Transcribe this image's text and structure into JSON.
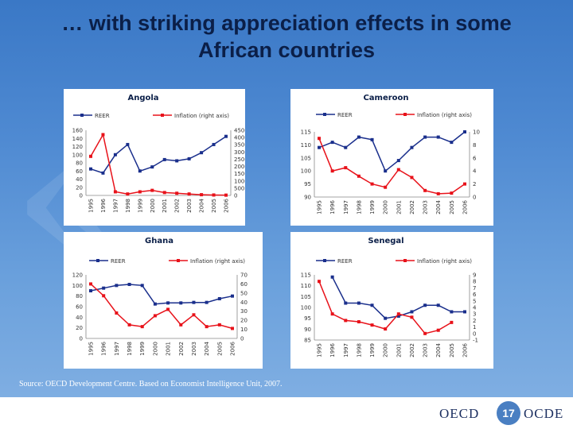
{
  "slide": {
    "title_line1": "… with striking appreciation effects in some",
    "title_line2": "African countries",
    "source": "Source: OECD Development Centre. Based on Economist Intelligence Unit, 2007.",
    "footer_left": "OECD",
    "footer_right": "OCDE",
    "page_number": "17"
  },
  "colors": {
    "reer": "#1a2f8c",
    "inflation": "#e8121a",
    "title": "#0b1f48"
  },
  "chart_data": [
    {
      "type": "line",
      "title": "Angola",
      "legend": [
        "REER",
        "Inflation (right axis)"
      ],
      "x": [
        "1995",
        "1996",
        "1997",
        "1998",
        "1999",
        "2000",
        "2001",
        "2002",
        "2003",
        "2004",
        "2005",
        "2006"
      ],
      "series": [
        {
          "name": "REER",
          "axis": "left",
          "values": [
            65,
            55,
            100,
            125,
            60,
            70,
            88,
            85,
            90,
            105,
            125,
            145
          ]
        },
        {
          "name": "Inflation (right axis)",
          "axis": "right",
          "values": [
            2700,
            4200,
            250,
            100,
            250,
            350,
            200,
            150,
            100,
            50,
            30,
            20
          ]
        }
      ],
      "ylim_left": [
        0,
        160
      ],
      "yticks_left": [
        "160",
        "140",
        "120",
        "100",
        "80",
        "60",
        "40",
        "20",
        "0"
      ],
      "ylim_right": [
        0,
        4500
      ],
      "yticks_right": [
        "4500",
        "4000",
        "3500",
        "3000",
        "2500",
        "2000",
        "1500",
        "1000",
        "500",
        "0"
      ]
    },
    {
      "type": "line",
      "title": "Cameroon",
      "legend": [
        "REER",
        "Inflation (right axis)"
      ],
      "x": [
        "1995",
        "1996",
        "1997",
        "1998",
        "1999",
        "2000",
        "2001",
        "2002",
        "2003",
        "2004",
        "2005",
        "2006"
      ],
      "series": [
        {
          "name": "REER",
          "axis": "left",
          "values": [
            109,
            111,
            109,
            113,
            112,
            100,
            104,
            109,
            113,
            113,
            111,
            115
          ]
        },
        {
          "name": "Inflation (right axis)",
          "axis": "right",
          "values": [
            9,
            4,
            4.5,
            3.2,
            2,
            1.5,
            4.2,
            3,
            1,
            0.5,
            0.6,
            2
          ]
        }
      ],
      "ylim_left": [
        90,
        115
      ],
      "yticks_left": [
        "115",
        "110",
        "105",
        "100",
        "95",
        "90"
      ],
      "ylim_right": [
        0,
        10
      ],
      "yticks_right": [
        "10",
        "8",
        "6",
        "4",
        "2",
        "0"
      ]
    },
    {
      "type": "line",
      "title": "Ghana",
      "legend": [
        "REER",
        "Inflation (right axis)"
      ],
      "x": [
        "1995",
        "1996",
        "1997",
        "1998",
        "1999",
        "2000",
        "2001",
        "2002",
        "2003",
        "2004",
        "2005",
        "2006"
      ],
      "series": [
        {
          "name": "REER",
          "axis": "left",
          "values": [
            90,
            95,
            100,
            102,
            100,
            65,
            67,
            67,
            68,
            68,
            75,
            80
          ]
        },
        {
          "name": "Inflation (right axis)",
          "axis": "right",
          "values": [
            60,
            47,
            28,
            15,
            13,
            25,
            32,
            15,
            26,
            13,
            15,
            11
          ]
        }
      ],
      "ylim_left": [
        0,
        120
      ],
      "yticks_left": [
        "120",
        "100",
        "80",
        "60",
        "40",
        "20",
        "0"
      ],
      "ylim_right": [
        0,
        70
      ],
      "yticks_right": [
        "70",
        "60",
        "50",
        "40",
        "30",
        "20",
        "10",
        "0"
      ]
    },
    {
      "type": "line",
      "title": "Senegal",
      "legend": [
        "REER",
        "Inflation (right axis)"
      ],
      "x": [
        "1995",
        "1996",
        "1997",
        "1998",
        "1999",
        "2000",
        "2001",
        "2002",
        "2003",
        "2004",
        "2005",
        "2006"
      ],
      "series": [
        {
          "name": "REER",
          "axis": "left",
          "values": [
            null,
            114,
            102,
            102,
            101,
            95,
            96,
            98,
            101,
            101,
            98,
            98
          ]
        },
        {
          "name": "Inflation (right axis)",
          "axis": "right",
          "values": [
            8,
            3,
            2,
            1.8,
            1.3,
            0.7,
            3,
            2.5,
            0,
            0.5,
            1.7,
            null
          ]
        }
      ],
      "ylim_left": [
        85,
        115
      ],
      "yticks_left": [
        "115",
        "110",
        "105",
        "100",
        "95",
        "90",
        "85"
      ],
      "ylim_right": [
        -1,
        9
      ],
      "yticks_right": [
        "9",
        "8",
        "7",
        "6",
        "5",
        "4",
        "3",
        "2",
        "1",
        "0",
        "-1"
      ]
    }
  ]
}
